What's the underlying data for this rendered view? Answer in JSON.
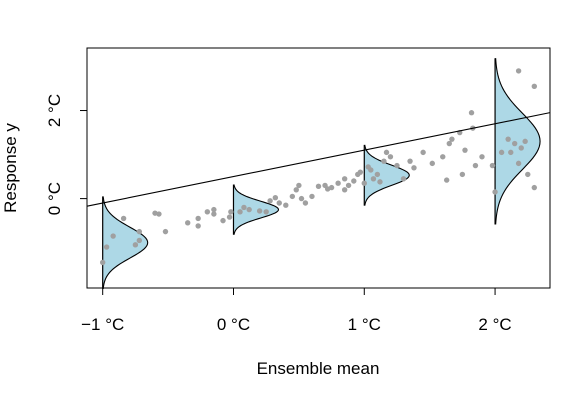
{
  "chart_data": {
    "type": "scatter",
    "title": "",
    "xlabel": "Ensemble mean",
    "ylabel": "Response y",
    "xlim": [
      -1.12,
      2.42
    ],
    "ylim": [
      -2.03,
      3.42
    ],
    "x_ticks": [
      {
        "value": -1,
        "label": "−1 °C"
      },
      {
        "value": 0,
        "label": "0 °C"
      },
      {
        "value": 1,
        "label": "1 °C"
      },
      {
        "value": 2,
        "label": "2 °C"
      }
    ],
    "y_ticks": [
      {
        "value": 0,
        "label": "0 °C"
      },
      {
        "value": 2,
        "label": "2 °C"
      }
    ],
    "grid": false,
    "legend": "none",
    "colors": {
      "points": "#a0a0a0",
      "density_fill": "#add8e6",
      "line": "#000000"
    },
    "regression_line": {
      "intercept": 0.5,
      "slope": 0.6
    },
    "points": [
      {
        "x": -1.0,
        "y": -1.45
      },
      {
        "x": -0.97,
        "y": -1.1
      },
      {
        "x": -0.92,
        "y": -0.85
      },
      {
        "x": -0.84,
        "y": -0.45
      },
      {
        "x": -0.75,
        "y": -1.05
      },
      {
        "x": -0.72,
        "y": -0.95
      },
      {
        "x": -0.72,
        "y": -0.75
      },
      {
        "x": -0.6,
        "y": -0.33
      },
      {
        "x": -0.57,
        "y": -0.35
      },
      {
        "x": -0.52,
        "y": -0.75
      },
      {
        "x": -0.35,
        "y": -0.55
      },
      {
        "x": -0.27,
        "y": -0.45
      },
      {
        "x": -0.27,
        "y": -0.62
      },
      {
        "x": -0.2,
        "y": -0.3
      },
      {
        "x": -0.15,
        "y": -0.25
      },
      {
        "x": -0.15,
        "y": -0.35
      },
      {
        "x": -0.08,
        "y": -0.5
      },
      {
        "x": -0.03,
        "y": -0.42
      },
      {
        "x": -0.02,
        "y": -0.3
      },
      {
        "x": 0.05,
        "y": -0.3
      },
      {
        "x": 0.08,
        "y": -0.2
      },
      {
        "x": 0.12,
        "y": -0.25
      },
      {
        "x": 0.2,
        "y": -0.28
      },
      {
        "x": 0.25,
        "y": -0.3
      },
      {
        "x": 0.28,
        "y": -0.05
      },
      {
        "x": 0.32,
        "y": 0.02
      },
      {
        "x": 0.35,
        "y": -0.1
      },
      {
        "x": 0.4,
        "y": -0.15
      },
      {
        "x": 0.45,
        "y": 0.05
      },
      {
        "x": 0.48,
        "y": 0.2
      },
      {
        "x": 0.5,
        "y": 0.3
      },
      {
        "x": 0.52,
        "y": 0.0
      },
      {
        "x": 0.55,
        "y": -0.1
      },
      {
        "x": 0.6,
        "y": 0.05
      },
      {
        "x": 0.65,
        "y": 0.28
      },
      {
        "x": 0.7,
        "y": 0.3
      },
      {
        "x": 0.72,
        "y": 0.22
      },
      {
        "x": 0.75,
        "y": 0.25
      },
      {
        "x": 0.8,
        "y": 0.35
      },
      {
        "x": 0.85,
        "y": 0.45
      },
      {
        "x": 0.85,
        "y": 0.2
      },
      {
        "x": 0.88,
        "y": 0.3
      },
      {
        "x": 0.92,
        "y": 0.4
      },
      {
        "x": 0.95,
        "y": 0.55
      },
      {
        "x": 0.97,
        "y": 0.6
      },
      {
        "x": 1.0,
        "y": 0.35
      },
      {
        "x": 1.03,
        "y": 0.72
      },
      {
        "x": 1.05,
        "y": 0.65
      },
      {
        "x": 1.07,
        "y": 0.45
      },
      {
        "x": 1.1,
        "y": 0.55
      },
      {
        "x": 1.12,
        "y": 0.38
      },
      {
        "x": 1.15,
        "y": 0.85
      },
      {
        "x": 1.17,
        "y": 1.05
      },
      {
        "x": 1.2,
        "y": 0.95
      },
      {
        "x": 1.25,
        "y": 0.75
      },
      {
        "x": 1.3,
        "y": 0.45
      },
      {
        "x": 1.35,
        "y": 0.85
      },
      {
        "x": 1.38,
        "y": 0.7
      },
      {
        "x": 1.45,
        "y": 1.05
      },
      {
        "x": 1.52,
        "y": 0.8
      },
      {
        "x": 1.6,
        "y": 0.95
      },
      {
        "x": 1.63,
        "y": 0.42
      },
      {
        "x": 1.65,
        "y": 1.25
      },
      {
        "x": 1.67,
        "y": 1.35
      },
      {
        "x": 1.73,
        "y": 1.5
      },
      {
        "x": 1.75,
        "y": 0.55
      },
      {
        "x": 1.77,
        "y": 1.1
      },
      {
        "x": 1.82,
        "y": 1.95
      },
      {
        "x": 1.83,
        "y": 1.6
      },
      {
        "x": 1.85,
        "y": 0.75
      },
      {
        "x": 1.9,
        "y": 0.95
      },
      {
        "x": 1.98,
        "y": 0.75
      },
      {
        "x": 2.0,
        "y": 0.15
      },
      {
        "x": 2.05,
        "y": 1.05
      },
      {
        "x": 2.1,
        "y": 1.35
      },
      {
        "x": 2.12,
        "y": 1.05
      },
      {
        "x": 2.15,
        "y": 1.25
      },
      {
        "x": 2.18,
        "y": 0.8
      },
      {
        "x": 2.2,
        "y": 1.15
      },
      {
        "x": 2.25,
        "y": 0.55
      },
      {
        "x": 2.23,
        "y": 1.3
      },
      {
        "x": 2.18,
        "y": 2.9
      },
      {
        "x": 2.3,
        "y": 2.55
      },
      {
        "x": 2.3,
        "y": 0.25
      }
    ],
    "densities": [
      {
        "x": -1,
        "mean": -1.0,
        "sd": 0.35,
        "n_sd": 3.0
      },
      {
        "x": 0,
        "mean": -0.25,
        "sd": 0.19,
        "n_sd": 3.0
      },
      {
        "x": 1,
        "mean": 0.53,
        "sd": 0.23,
        "n_sd": 3.0
      },
      {
        "x": 2,
        "mean": 1.3,
        "sd": 0.64,
        "n_sd": 2.95
      }
    ]
  }
}
